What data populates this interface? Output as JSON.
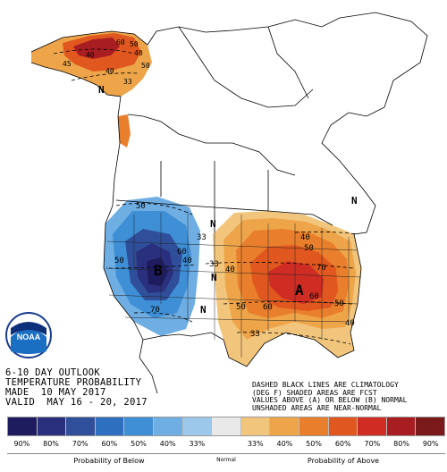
{
  "map": {
    "contours_below": [
      "50",
      "50",
      "60",
      "70",
      "33",
      "40"
    ],
    "contours_above": [
      "33",
      "40",
      "40",
      "50",
      "50",
      "60",
      "70",
      "60",
      "50",
      "40",
      "33"
    ],
    "alaska_labels": [
      "60",
      "50",
      "40",
      "40",
      "33",
      "45",
      "40",
      "50"
    ],
    "normal_markers": [
      "N",
      "N",
      "N",
      "N",
      "N"
    ],
    "below_letter": "B",
    "above_letter": "A"
  },
  "caption": {
    "line1": "6-10 DAY OUTLOOK",
    "line2": "TEMPERATURE PROBABILITY",
    "line3": "MADE  10 MAY 2017",
    "line4": "VALID  MAY 16 - 20, 2017"
  },
  "note": {
    "line1": "DASHED BLACK LINES ARE CLIMATOLOGY",
    "line2": "(DEG F) SHADED AREAS ARE FCST",
    "line3": "VALUES ABOVE (A) OR BELOW (B) NORMAL",
    "line4": "UNSHADED AREAS ARE NEAR-NORMAL"
  },
  "legend": {
    "colors": [
      "#1e1b5e",
      "#2a2f7e",
      "#2f4f9a",
      "#2e6fbf",
      "#3f8fd6",
      "#6faee3",
      "#9cc8ec",
      "#e9e9e9",
      "#f2c57c",
      "#eea54a",
      "#e97f2c",
      "#e0581f",
      "#cf2d24",
      "#a81d22",
      "#7a1a1a"
    ],
    "ticks": [
      "90%",
      "80%",
      "70%",
      "60%",
      "50%",
      "40%",
      "33%",
      "",
      "33%",
      "40%",
      "50%",
      "60%",
      "70%",
      "80%",
      "90%"
    ],
    "below_label": "Probability of Below",
    "normal_label": "Normal",
    "above_label": "Probability of Above"
  },
  "logo": {
    "text": "NOAA"
  }
}
